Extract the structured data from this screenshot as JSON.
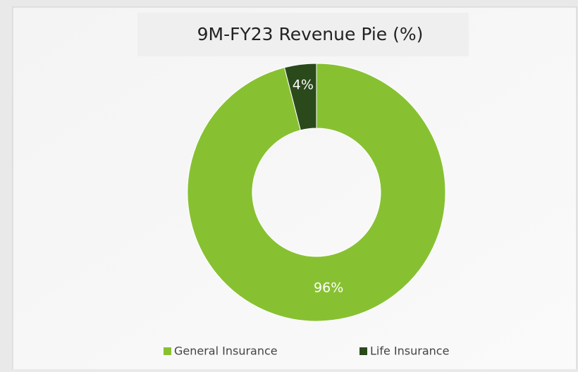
{
  "chart_data": {
    "type": "donut",
    "title": "9M-FY23 Revenue Pie (%)",
    "categories": [
      "General Insurance",
      "Life Insurance"
    ],
    "values": [
      96,
      4
    ],
    "value_labels": [
      "96%",
      "4%"
    ],
    "colors": [
      "#87c132",
      "#2b4a1c"
    ],
    "legend": "bottom"
  }
}
